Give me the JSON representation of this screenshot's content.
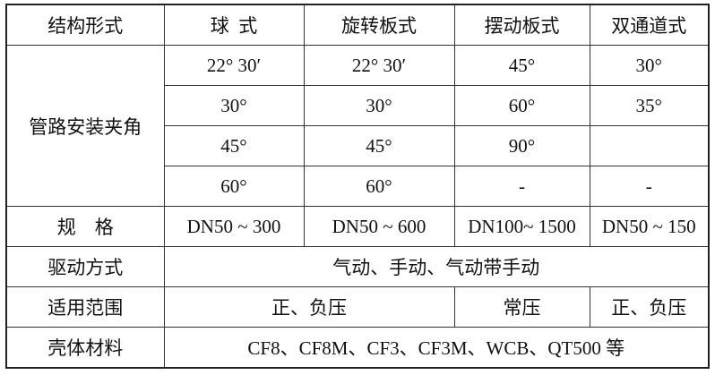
{
  "header": {
    "label": "结构形式",
    "types": [
      "球  式",
      "旋转板式",
      "摆动板式",
      "双通道式"
    ]
  },
  "angle": {
    "label": "管路安装夹角",
    "rows": [
      [
        "22° 30′",
        "22° 30′",
        "45°",
        "30°"
      ],
      [
        "30°",
        "30°",
        "60°",
        "35°"
      ],
      [
        "45°",
        "45°",
        "90°",
        ""
      ],
      [
        "60°",
        "60°",
        "-",
        "-"
      ]
    ]
  },
  "spec": {
    "label": "规    格",
    "values": [
      "DN50 ~ 300",
      "DN50 ~ 600",
      "DN100~ 1500",
      "DN50 ~ 150"
    ]
  },
  "drive": {
    "label": "驱动方式",
    "value": "气动、手动、气动带手动"
  },
  "range": {
    "label": "适用范围",
    "values": [
      "正、负压",
      "常压",
      "正、负压"
    ]
  },
  "material": {
    "label": "壳体材料",
    "value": "CF8、CF8M、CF3、CF3M、WCB、QT500 等"
  }
}
